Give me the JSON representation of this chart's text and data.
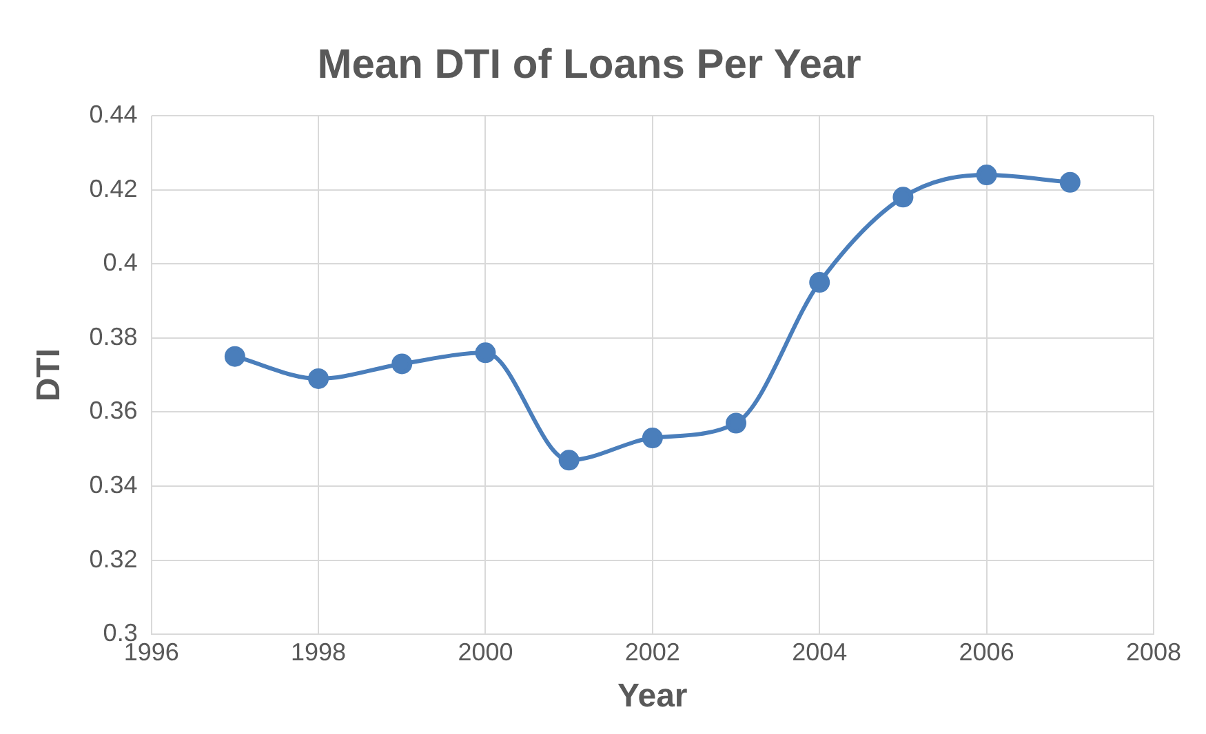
{
  "chart_data": {
    "type": "line",
    "title": "Mean DTI of Loans Per Year",
    "xlabel": "Year",
    "ylabel": "DTI",
    "x": [
      1997,
      1998,
      1999,
      2000,
      2001,
      2002,
      2003,
      2004,
      2005,
      2006,
      2007
    ],
    "series": [
      {
        "color": "#4a7ebb",
        "values": [
          0.375,
          0.369,
          0.373,
          0.376,
          0.347,
          0.353,
          0.357,
          0.395,
          0.418,
          0.424,
          0.422
        ]
      }
    ],
    "xlim": [
      1996,
      2008
    ],
    "xticks": [
      1996,
      1998,
      2000,
      2002,
      2004,
      2006,
      2008
    ],
    "ylim": [
      0.3,
      0.44
    ],
    "yticks": [
      0.3,
      0.32,
      0.34,
      0.36,
      0.38,
      0.4,
      0.42,
      0.44
    ],
    "grid": true,
    "legend": false,
    "marker": "circle",
    "line_style": "solid"
  }
}
